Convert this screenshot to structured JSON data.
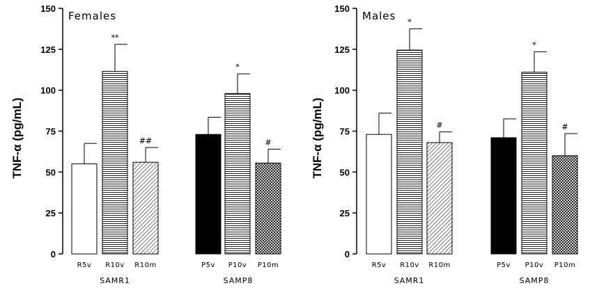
{
  "chart_data": [
    {
      "type": "bar",
      "title": "Females",
      "ylabel": "TNF-α (pg/mL)",
      "ylim": [
        0,
        150
      ],
      "yticks": [
        0,
        25,
        50,
        75,
        100,
        125,
        150
      ],
      "groups": [
        {
          "label": "SAMR1",
          "categories": [
            "R5v",
            "R10v",
            "R10m"
          ]
        },
        {
          "label": "SAMP8",
          "categories": [
            "P5v",
            "P10v",
            "P10m"
          ]
        }
      ],
      "categories": [
        "R5v",
        "R10v",
        "R10m",
        "P5v",
        "P10v",
        "P10m"
      ],
      "values": [
        55,
        111.5,
        56,
        73,
        98,
        55.5
      ],
      "errors": [
        12.5,
        16.5,
        9,
        10.5,
        12,
        8.5
      ],
      "patterns": [
        "white",
        "hlines",
        "diag",
        "black",
        "hlines",
        "cross"
      ],
      "significance": [
        "",
        "**",
        "##",
        "",
        "*",
        "#"
      ]
    },
    {
      "type": "bar",
      "title": "Males",
      "ylabel": "TNF-α (pg/mL)",
      "ylim": [
        0,
        150
      ],
      "yticks": [
        0,
        25,
        50,
        75,
        100,
        125,
        150
      ],
      "groups": [
        {
          "label": "SAMR1",
          "categories": [
            "R5v",
            "R10v",
            "R10m"
          ]
        },
        {
          "label": "SAMP8",
          "categories": [
            "P5v",
            "P10v",
            "P10m"
          ]
        }
      ],
      "categories": [
        "R5v",
        "R10v",
        "R10m",
        "P5v",
        "P10v",
        "P10m"
      ],
      "values": [
        73,
        124.5,
        68,
        71,
        111,
        60
      ],
      "errors": [
        13,
        13,
        6.5,
        11.5,
        12.5,
        13.5
      ],
      "patterns": [
        "white",
        "hlines",
        "diag",
        "black",
        "hlines",
        "cross"
      ],
      "significance": [
        "",
        "*",
        "#",
        "",
        "*",
        "#"
      ]
    }
  ]
}
